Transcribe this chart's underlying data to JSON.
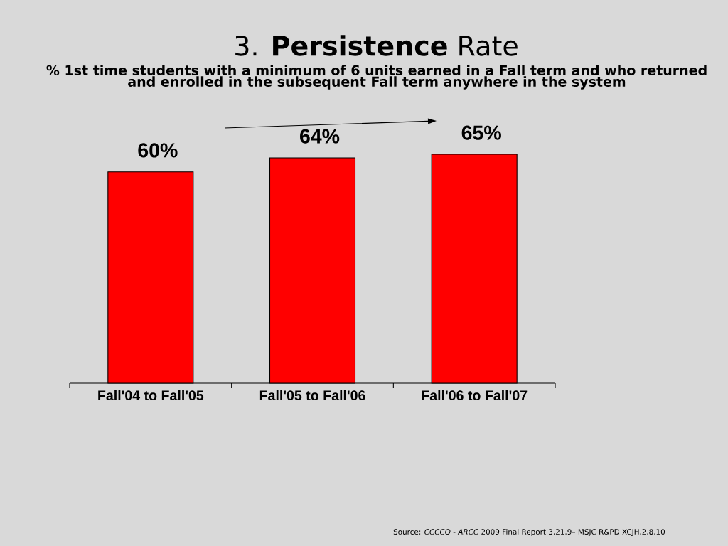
{
  "chart_data": {
    "type": "bar",
    "title": "3. **Persistence** Rate",
    "subtitle": "% 1st time students with a minimum of 6 units earned in a Fall term and who returned and enrolled in the subsequent Fall term anywhere in the system",
    "categories": [
      "Fall'04 to Fall'05",
      "Fall'05 to Fall'06",
      "Fall'06 to Fall'07"
    ],
    "values": [
      60,
      64,
      65
    ],
    "value_labels": [
      "60%",
      "64%",
      "65%"
    ],
    "color": "#ff0000",
    "annotations": [
      "Source: *CCCCO - ARCC* 2009 Final Report 3.21.9– MSJC R&PD XCJH.2.8.10"
    ]
  }
}
